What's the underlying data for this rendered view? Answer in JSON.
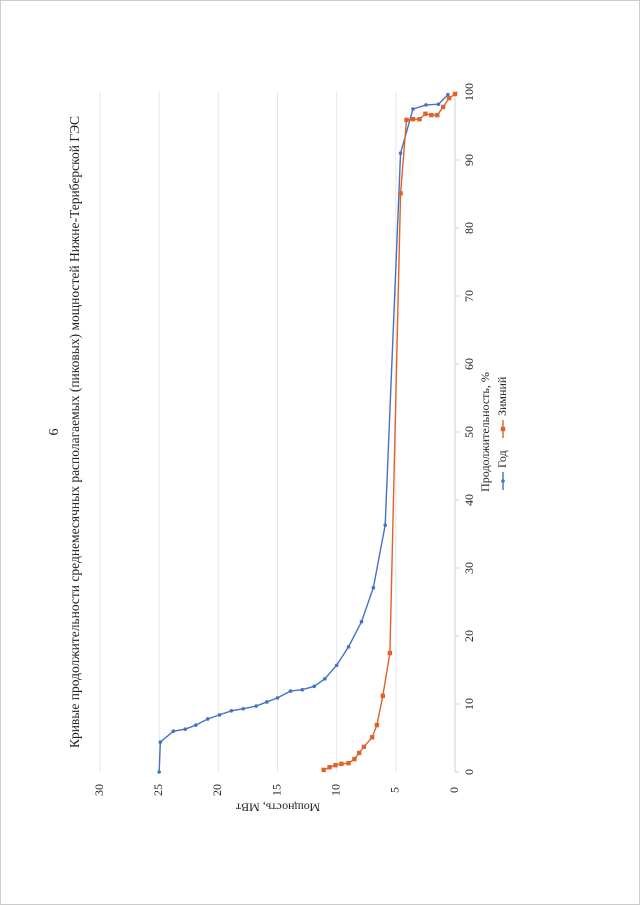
{
  "page_number": "6",
  "chart_data": {
    "type": "line",
    "title": "Кривые продолжительности среднемесячных располагаемых (пиковых) мощностей Нижне-Териберской ГЭС",
    "xlabel": "Продолжительность, %",
    "ylabel": "Мощность, МВт",
    "xlim": [
      0,
      100
    ],
    "xticks": [
      0,
      10,
      20,
      30,
      40,
      50,
      60,
      70,
      80,
      90,
      100
    ],
    "ylim": [
      0,
      30
    ],
    "yticks": [
      0,
      5,
      10,
      15,
      20,
      25,
      30
    ],
    "grid": true,
    "legend": "bottom",
    "series": [
      {
        "name": "Год",
        "color": "#4472c4",
        "x": [
          0,
          4.4,
          6,
          6.3,
          6.9,
          7.8,
          8.4,
          9,
          9.3,
          9.7,
          10.3,
          10.9,
          11.9,
          12.1,
          12.6,
          13.7,
          15.7,
          18.4,
          22.1,
          27.1,
          36.3,
          91,
          97.5,
          98.1,
          98.2,
          99.6
        ],
        "values": [
          25,
          24.9,
          23.8,
          22.8,
          21.9,
          20.9,
          19.9,
          18.9,
          17.9,
          16.8,
          15.9,
          15,
          13.9,
          12.9,
          11.9,
          11,
          10,
          9,
          7.9,
          6.9,
          5.9,
          4.6,
          3.55,
          2.45,
          1.4,
          0.6
        ]
      },
      {
        "name": "Зимний",
        "color": "#e0622a",
        "x": [
          0.3,
          0.7,
          1,
          1.2,
          1.3,
          1.9,
          2.8,
          3.7,
          5.1,
          6.9,
          11.2,
          17.5,
          85.1,
          95.9,
          96,
          96,
          96.8,
          96.6,
          96.6,
          97.8,
          99.1,
          99.7
        ],
        "values": [
          11.1,
          10.6,
          10.1,
          9.6,
          9,
          8.5,
          8.1,
          7.7,
          7,
          6.6,
          6.1,
          5.5,
          4.6,
          4.1,
          3.55,
          3,
          2.5,
          2,
          1.5,
          1,
          0.5,
          0
        ]
      }
    ]
  }
}
